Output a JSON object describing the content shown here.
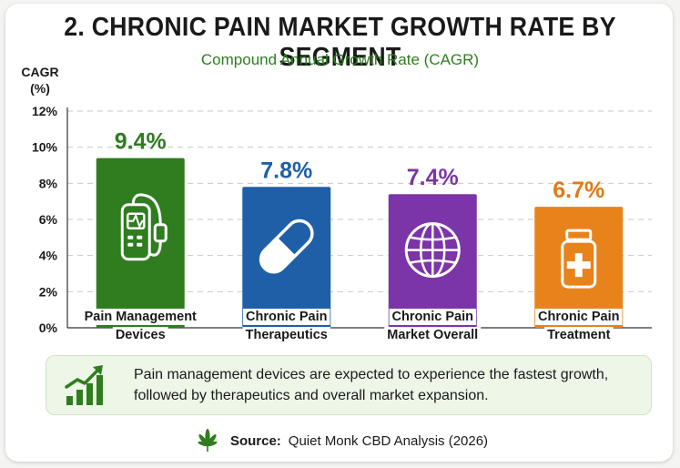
{
  "header": {
    "title": "2. CHRONIC PAIN MARKET GROWTH RATE BY SEGMENT",
    "subtitle": "Compound Annual Growth Rate (CAGR)"
  },
  "chart_data": {
    "type": "bar",
    "categories": [
      "Pain Management Devices",
      "Chronic Pain Therapeutics",
      "Chronic Pain Market Overall",
      "Chronic Pain Treatment"
    ],
    "category_lines": [
      [
        "Pain Management",
        "Devices"
      ],
      [
        "Chronic Pain",
        "Therapeutics"
      ],
      [
        "Chronic Pain",
        "Market Overall"
      ],
      [
        "Chronic Pain",
        "Treatment"
      ]
    ],
    "values": [
      9.4,
      7.8,
      7.4,
      6.7
    ],
    "value_labels": [
      "9.4%",
      "7.8%",
      "7.4%",
      "6.7%"
    ],
    "colors": [
      "#2f7d1f",
      "#1f5fa8",
      "#7b35a8",
      "#e8831c"
    ],
    "label_colors": [
      "#2e7d1f",
      "#1f5fa8",
      "#7b35a8",
      "#e07a16"
    ],
    "icons": [
      "pain-device-icon",
      "pill-capsule-icon",
      "globe-icon",
      "medicine-bottle-icon"
    ],
    "ylabel_lines": [
      "CAGR",
      "(%)"
    ],
    "ylim": [
      0,
      12
    ],
    "yticks": [
      0,
      2,
      4,
      6,
      8,
      10,
      12
    ],
    "ytick_labels": [
      "0%",
      "2%",
      "4%",
      "6%",
      "8%",
      "10%",
      "12%"
    ],
    "grid": true
  },
  "note": {
    "text": "Pain management devices are expected to experience the fastest growth, followed by therapeutics and overall market expansion.",
    "icon": "growth-chart-icon"
  },
  "source": {
    "label": "Source:",
    "text": "Quiet Monk CBD Analysis (2026)",
    "icon": "cannabis-leaf-icon"
  }
}
